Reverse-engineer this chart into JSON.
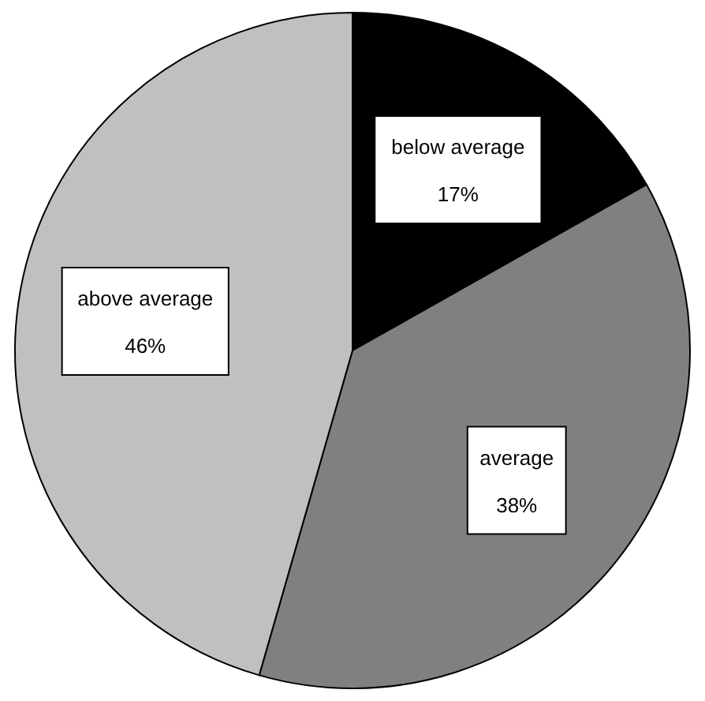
{
  "chart_data": {
    "type": "pie",
    "categories": [
      "below average",
      "average",
      "above average"
    ],
    "values": [
      17,
      38,
      46
    ],
    "value_labels": [
      "17%",
      "38%",
      "46%"
    ],
    "colors": [
      "#000000",
      "#808080",
      "#c0c0c0"
    ]
  }
}
